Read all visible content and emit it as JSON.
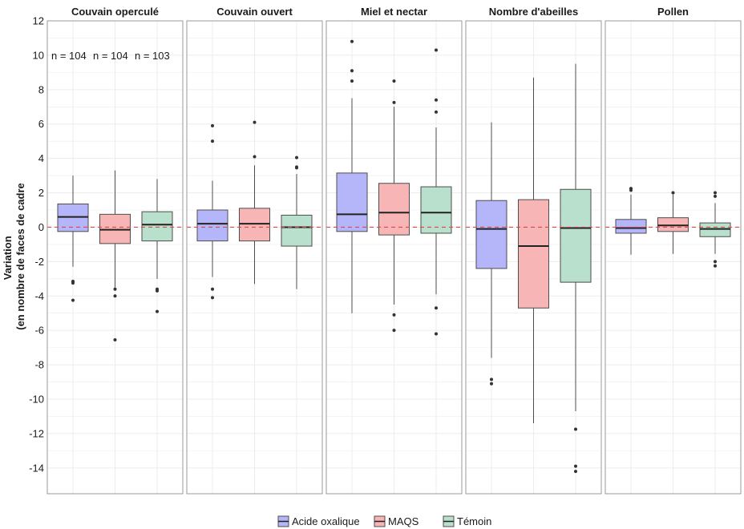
{
  "colors": {
    "grid": "#ececec",
    "panel_border": "#999999",
    "zero_line": "#e04848",
    "whisker": "#4d4d4d",
    "median": "#222222",
    "outlier": "#333333"
  },
  "chart_data": {
    "type": "box",
    "ylabel_lines": [
      "Variation",
      "(en nombre de faces de cadre"
    ],
    "ylim": [
      -15.5,
      12
    ],
    "yticks": [
      12,
      10,
      8,
      6,
      4,
      2,
      0,
      -2,
      -4,
      -6,
      -8,
      -10,
      -12,
      -14
    ],
    "reference_line": 0,
    "grid": true,
    "legend_position": "bottom",
    "annotations": [
      "n = 104",
      "n = 104",
      "n = 103"
    ],
    "series": [
      {
        "name": "Acide oxalique",
        "fill": "#b5b5f9"
      },
      {
        "name": "MAQS",
        "fill": "#f7b5b5"
      },
      {
        "name": "Témoin",
        "fill": "#b8e0cc"
      }
    ],
    "panels": [
      {
        "title": "Couvain operculé",
        "boxes": [
          {
            "whislo": -2.3,
            "q1": -0.25,
            "med": 0.6,
            "q3": 1.35,
            "whishi": 3.0,
            "fliers": [
              -3.15,
              -3.25,
              -4.25
            ]
          },
          {
            "whislo": -3.5,
            "q1": -0.95,
            "med": -0.15,
            "q3": 0.75,
            "whishi": 3.3,
            "fliers": [
              -3.6,
              -4.0,
              -6.55
            ]
          },
          {
            "whislo": -3.0,
            "q1": -0.8,
            "med": 0.15,
            "q3": 0.9,
            "whishi": 2.8,
            "fliers": [
              -3.6,
              -3.7,
              -4.9
            ]
          }
        ]
      },
      {
        "title": "Couvain ouvert",
        "boxes": [
          {
            "whislo": -2.9,
            "q1": -0.8,
            "med": 0.2,
            "q3": 1.0,
            "whishi": 2.7,
            "fliers": [
              5.9,
              5.0,
              -3.6,
              -4.1
            ]
          },
          {
            "whislo": -3.3,
            "q1": -0.8,
            "med": 0.2,
            "q3": 1.1,
            "whishi": 3.6,
            "fliers": [
              6.1,
              4.1
            ]
          },
          {
            "whislo": -3.6,
            "q1": -1.1,
            "med": 0.0,
            "q3": 0.7,
            "whishi": 3.1,
            "fliers": [
              4.05,
              3.5,
              3.45
            ]
          }
        ]
      },
      {
        "title": "Miel et nectar",
        "boxes": [
          {
            "whislo": -5.0,
            "q1": -0.25,
            "med": 0.75,
            "q3": 3.15,
            "whishi": 7.5,
            "fliers": [
              10.8,
              9.1,
              8.5
            ]
          },
          {
            "whislo": -4.5,
            "q1": -0.45,
            "med": 0.85,
            "q3": 2.55,
            "whishi": 7.0,
            "fliers": [
              8.5,
              7.25,
              -5.1,
              -6.0
            ]
          },
          {
            "whislo": -3.9,
            "q1": -0.35,
            "med": 0.85,
            "q3": 2.35,
            "whishi": 5.8,
            "fliers": [
              10.3,
              7.4,
              6.7,
              -4.7,
              -6.2
            ]
          }
        ]
      },
      {
        "title": "Nombre d'abeilles",
        "boxes": [
          {
            "whislo": -7.6,
            "q1": -2.4,
            "med": -0.1,
            "q3": 1.55,
            "whishi": 6.1,
            "fliers": [
              -8.85,
              -9.1
            ]
          },
          {
            "whislo": -11.4,
            "q1": -4.7,
            "med": -1.1,
            "q3": 1.6,
            "whishi": 8.7,
            "fliers": []
          },
          {
            "whislo": -10.7,
            "q1": -3.2,
            "med": -0.05,
            "q3": 2.2,
            "whishi": 9.5,
            "fliers": [
              -11.75,
              -13.9,
              -14.2
            ]
          }
        ]
      },
      {
        "title": "Pollen",
        "boxes": [
          {
            "whislo": -1.6,
            "q1": -0.35,
            "med": -0.05,
            "q3": 0.45,
            "whishi": 1.9,
            "fliers": [
              2.25,
              2.15
            ]
          },
          {
            "whislo": -1.55,
            "q1": -0.25,
            "med": 0.1,
            "q3": 0.55,
            "whishi": 1.9,
            "fliers": [
              2.0
            ]
          },
          {
            "whislo": -1.55,
            "q1": -0.55,
            "med": -0.1,
            "q3": 0.25,
            "whishi": 1.4,
            "fliers": [
              2.0,
              1.8,
              -2.0,
              -2.25
            ]
          }
        ]
      }
    ]
  }
}
